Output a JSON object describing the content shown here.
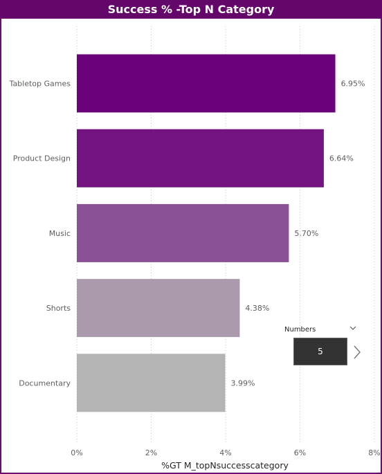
{
  "title": "Success % -Top N Category",
  "chart_data": {
    "type": "bar",
    "orientation": "horizontal",
    "title": "Success % -Top N Category",
    "categories": [
      "Tabletop Games",
      "Product Design",
      "Music",
      "Shorts",
      "Documentary"
    ],
    "values": [
      6.95,
      6.64,
      5.7,
      4.38,
      3.99
    ],
    "value_labels": [
      "6.95%",
      "6.64%",
      "5.70%",
      "4.38%",
      "3.99%"
    ],
    "bar_colors": [
      "#6a0379",
      "#731380",
      "#8a4f94",
      "#aa9aab",
      "#b4b4b4"
    ],
    "xlabel": "%GT M_topNsuccesscategory",
    "ylabel": "",
    "xlim": [
      0,
      8
    ],
    "xticks": [
      0,
      2,
      4,
      6,
      8
    ],
    "xtick_labels": [
      "0%",
      "2%",
      "4%",
      "6%",
      "8%"
    ],
    "grid": "vertical dotted"
  },
  "slicer": {
    "label": "Numbers",
    "value": "5",
    "chevron_icon": "chevron-down-icon",
    "next_icon": "chevron-right-icon"
  }
}
